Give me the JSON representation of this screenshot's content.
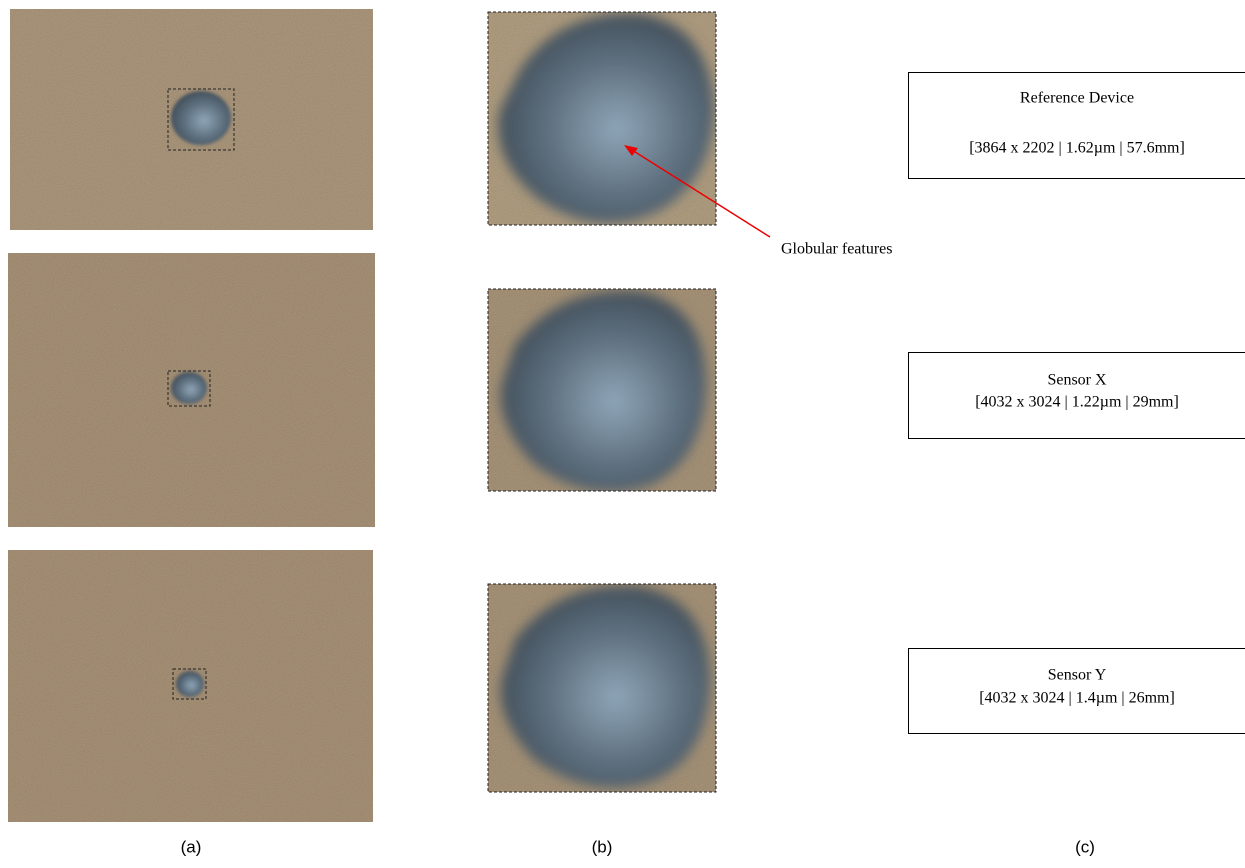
{
  "rows": [
    {
      "device": "Reference Device",
      "specs": "[3864 x 2202 | 1.62µm | 57.6mm]"
    },
    {
      "device": "Sensor X",
      "specs": "[4032 x 3024 | 1.22µm | 29mm]"
    },
    {
      "device": "Sensor Y",
      "specs": "[4032 x 3024 | 1.4µm | 26mm]"
    }
  ],
  "annotation": "Globular features",
  "column_labels": [
    "(a)",
    "(b)",
    "(c)"
  ]
}
